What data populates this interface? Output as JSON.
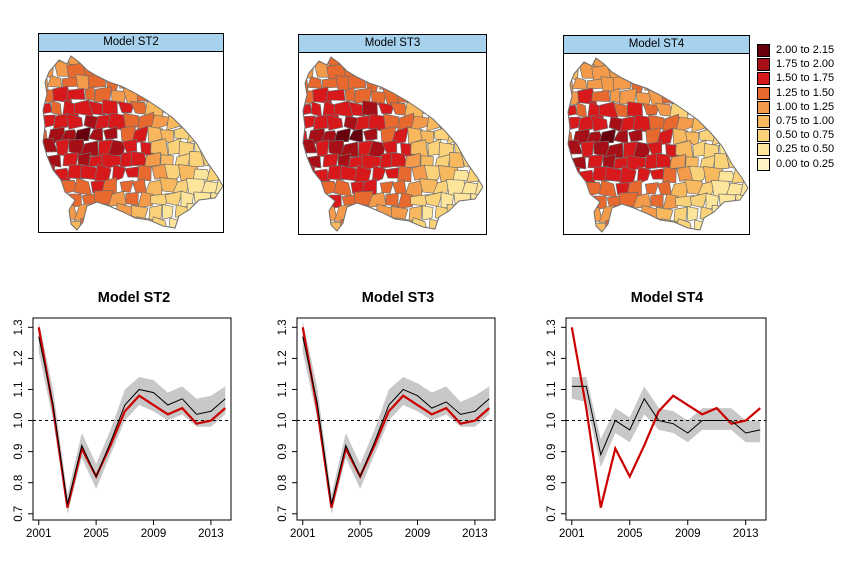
{
  "maps": [
    {
      "title": "Model ST2"
    },
    {
      "title": "Model ST3"
    },
    {
      "title": "Model ST4"
    }
  ],
  "legend": {
    "entries": [
      {
        "label": "2.00 to 2.15",
        "color": "#67000d"
      },
      {
        "label": "1.75 to 2.00",
        "color": "#a50f15"
      },
      {
        "label": "1.50 to 1.75",
        "color": "#d7191c"
      },
      {
        "label": "1.25 to 1.50",
        "color": "#e8692e"
      },
      {
        "label": "1.00 to 1.25",
        "color": "#f39b4a"
      },
      {
        "label": "0.75 to 1.00",
        "color": "#f7b85e"
      },
      {
        "label": "0.50 to 0.75",
        "color": "#fad27a"
      },
      {
        "label": "0.25 to 0.50",
        "color": "#fde59c"
      },
      {
        "label": "0.00 to 0.25",
        "color": "#fff3c4"
      }
    ]
  },
  "colors": {
    "observed_line": "#cc0000",
    "fitted_line": "#000000",
    "ci_band": "#c8c8c8",
    "map_border": "#6e6e6e",
    "reference_line": "#000000"
  },
  "chart_data": [
    {
      "type": "line",
      "title": "Model ST2",
      "x": [
        2001,
        2002,
        2003,
        2004,
        2005,
        2006,
        2007,
        2008,
        2009,
        2010,
        2011,
        2012,
        2013,
        2014
      ],
      "xticks": [
        "2001",
        "2005",
        "2009",
        "2013"
      ],
      "xticks_values": [
        2001,
        2005,
        2009,
        2013
      ],
      "yticks": [
        "0.7",
        "0.8",
        "0.9",
        "1.0",
        "1.1",
        "1.2",
        "1.3"
      ],
      "yticks_values": [
        0.7,
        0.8,
        0.9,
        1.0,
        1.1,
        1.2,
        1.3
      ],
      "ylim": [
        0.68,
        1.33
      ],
      "xlim": [
        2000.6,
        2014.4
      ],
      "reference_y": 1.0,
      "series": [
        {
          "role": "observed",
          "values": [
            1.3,
            1.04,
            0.72,
            0.91,
            0.82,
            0.92,
            1.03,
            1.08,
            1.05,
            1.02,
            1.04,
            0.99,
            1.0,
            1.04
          ]
        },
        {
          "role": "fitted",
          "values": [
            1.27,
            1.05,
            0.73,
            0.92,
            0.82,
            0.93,
            1.05,
            1.1,
            1.09,
            1.05,
            1.07,
            1.02,
            1.03,
            1.07
          ]
        }
      ],
      "band": {
        "lower": [
          1.22,
          1.0,
          0.7,
          0.88,
          0.78,
          0.89,
          1.0,
          1.05,
          1.03,
          1.0,
          1.02,
          0.98,
          0.98,
          1.02
        ],
        "upper": [
          1.32,
          1.1,
          0.76,
          0.96,
          0.86,
          0.97,
          1.1,
          1.14,
          1.13,
          1.09,
          1.11,
          1.07,
          1.08,
          1.11
        ]
      }
    },
    {
      "type": "line",
      "title": "Model ST3",
      "x": [
        2001,
        2002,
        2003,
        2004,
        2005,
        2006,
        2007,
        2008,
        2009,
        2010,
        2011,
        2012,
        2013,
        2014
      ],
      "xticks": [
        "2001",
        "2005",
        "2009",
        "2013"
      ],
      "xticks_values": [
        2001,
        2005,
        2009,
        2013
      ],
      "yticks": [
        "0.7",
        "0.8",
        "0.9",
        "1.0",
        "1.1",
        "1.2",
        "1.3"
      ],
      "yticks_values": [
        0.7,
        0.8,
        0.9,
        1.0,
        1.1,
        1.2,
        1.3
      ],
      "ylim": [
        0.68,
        1.33
      ],
      "xlim": [
        2000.6,
        2014.4
      ],
      "reference_y": 1.0,
      "series": [
        {
          "role": "observed",
          "values": [
            1.3,
            1.04,
            0.72,
            0.91,
            0.82,
            0.92,
            1.03,
            1.08,
            1.05,
            1.02,
            1.04,
            0.99,
            1.0,
            1.04
          ]
        },
        {
          "role": "fitted",
          "values": [
            1.27,
            1.06,
            0.73,
            0.92,
            0.82,
            0.93,
            1.05,
            1.1,
            1.08,
            1.04,
            1.06,
            1.02,
            1.03,
            1.07
          ]
        }
      ],
      "band": {
        "lower": [
          1.22,
          1.01,
          0.7,
          0.88,
          0.78,
          0.89,
          1.0,
          1.05,
          1.03,
          1.0,
          1.02,
          0.98,
          0.98,
          1.02
        ],
        "upper": [
          1.32,
          1.11,
          0.76,
          0.96,
          0.86,
          0.97,
          1.1,
          1.14,
          1.12,
          1.09,
          1.11,
          1.06,
          1.08,
          1.11
        ]
      }
    },
    {
      "type": "line",
      "title": "Model ST4",
      "x": [
        2001,
        2002,
        2003,
        2004,
        2005,
        2006,
        2007,
        2008,
        2009,
        2010,
        2011,
        2012,
        2013,
        2014
      ],
      "xticks": [
        "2001",
        "2005",
        "2009",
        "2013"
      ],
      "xticks_values": [
        2001,
        2005,
        2009,
        2013
      ],
      "yticks": [
        "0.7",
        "0.8",
        "0.9",
        "1.0",
        "1.1",
        "1.2",
        "1.3"
      ],
      "yticks_values": [
        0.7,
        0.8,
        0.9,
        1.0,
        1.1,
        1.2,
        1.3
      ],
      "ylim": [
        0.68,
        1.33
      ],
      "xlim": [
        2000.6,
        2014.4
      ],
      "reference_y": 1.0,
      "series": [
        {
          "role": "observed",
          "values": [
            1.3,
            1.04,
            0.72,
            0.91,
            0.82,
            0.92,
            1.03,
            1.08,
            1.05,
            1.02,
            1.04,
            0.99,
            1.0,
            1.04
          ]
        },
        {
          "role": "fitted",
          "values": [
            1.11,
            1.11,
            0.89,
            1.0,
            0.97,
            1.07,
            1.0,
            0.99,
            0.96,
            1.0,
            1.0,
            1.0,
            0.96,
            0.97
          ]
        }
      ],
      "band": {
        "lower": [
          1.07,
          1.06,
          0.85,
          0.96,
          0.93,
          1.02,
          0.97,
          0.96,
          0.93,
          0.97,
          0.97,
          0.97,
          0.93,
          0.93
        ],
        "upper": [
          1.14,
          1.14,
          0.94,
          1.04,
          1.01,
          1.11,
          1.04,
          1.03,
          1.0,
          1.04,
          1.04,
          1.04,
          1.0,
          1.0
        ]
      }
    }
  ]
}
